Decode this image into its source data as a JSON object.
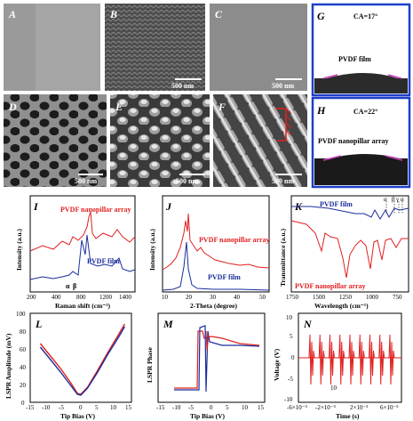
{
  "panels": {
    "A": "A",
    "B": "B",
    "C": "C",
    "D": "D",
    "E": "E",
    "F": "F",
    "G": "G",
    "H": "H",
    "I": "I",
    "J": "J",
    "K": "K",
    "L": "L",
    "M": "M",
    "N": "N"
  },
  "scalebars": {
    "B": "500 nm",
    "C": "500 nm",
    "D": "500 nm",
    "E": "500 nm",
    "F": "500 nm"
  },
  "contact_angle": {
    "G": {
      "ca": "CA=17°",
      "label": "PVDF film"
    },
    "H": {
      "ca": "CA=22°",
      "label": "PVDF nanopillar array"
    }
  },
  "colors": {
    "red": "#e02020",
    "blue": "#1a2d9c",
    "frame_blue": "#1f3fc8",
    "sem_dark": "#2a2a2a"
  },
  "chart_data": [
    {
      "panel": "I",
      "type": "line",
      "xlabel": "Raman shift (cm⁻¹)",
      "ylabel": "Intensity (a.u.)",
      "xticks": [
        "200",
        "400",
        "800",
        "1200",
        "1400"
      ],
      "series": [
        {
          "name": "PVDF nanopillar array",
          "color": "red"
        },
        {
          "name": "PVDF film",
          "color": "blue"
        }
      ],
      "annotations": [
        "α",
        "β"
      ]
    },
    {
      "panel": "J",
      "type": "line",
      "xlabel": "2-Theta (degree)",
      "ylabel": "Intensity (a.u.)",
      "xticks": [
        "10",
        "20",
        "30",
        "40",
        "50"
      ],
      "series": [
        {
          "name": "PVDF nanopillar array",
          "color": "red"
        },
        {
          "name": "PVDF film",
          "color": "blue"
        }
      ]
    },
    {
      "panel": "K",
      "type": "line",
      "xlabel": "Wavelength (cm⁻¹)",
      "ylabel": "Transmittance (a.u.)",
      "xticks": [
        "1750",
        "1500",
        "1250",
        "1000",
        "750"
      ],
      "series": [
        {
          "name": "PVDF film",
          "color": "blue"
        },
        {
          "name": "PVDF nanopillar array",
          "color": "red"
        }
      ],
      "annotations": [
        "α",
        "β",
        "γ",
        "α"
      ]
    },
    {
      "panel": "L",
      "type": "line",
      "xlabel": "Tip Bias (V)",
      "ylabel": "LSPR Amplitude (mV)",
      "xticks": [
        "-15",
        "-10",
        "-5",
        "0",
        "5",
        "10",
        "15"
      ],
      "yticks": [
        "0",
        "20",
        "40",
        "60",
        "80",
        "100"
      ],
      "xlim": [
        -15,
        15
      ],
      "ylim": [
        0,
        100
      ],
      "series": [
        {
          "color": "red",
          "x": [
            -12,
            -9,
            -6,
            -3,
            -1,
            0,
            2,
            5,
            8,
            11,
            13
          ],
          "y": [
            66,
            52,
            38,
            22,
            10,
            9,
            17,
            36,
            56,
            75,
            88
          ]
        },
        {
          "color": "blue",
          "x": [
            -12,
            -9,
            -6,
            -3,
            -1,
            0,
            2,
            5,
            8,
            11,
            13
          ],
          "y": [
            62,
            48,
            34,
            19,
            9,
            8,
            16,
            34,
            54,
            72,
            85
          ]
        }
      ]
    },
    {
      "panel": "M",
      "type": "line",
      "xlabel": "Tip Bias (V)",
      "ylabel": "LSPR Phase",
      "xticks": [
        "-15",
        "-10",
        "-5",
        "0",
        "5",
        "10",
        "15"
      ],
      "series": [
        {
          "color": "red"
        },
        {
          "color": "blue"
        }
      ]
    },
    {
      "panel": "N",
      "type": "line",
      "xlabel": "Time (s)",
      "ylabel": "Voltage (V)",
      "xticks": [
        "-6×10⁻⁵",
        "-2×10⁻⁵",
        "2×10⁻⁵",
        "6×10⁻⁵"
      ],
      "yticks": [
        "-10",
        "-5",
        "0",
        "5",
        "10"
      ],
      "ylim": [
        -10,
        10
      ],
      "annotation": "10",
      "series": [
        {
          "color": "red",
          "pulses": 9
        }
      ]
    }
  ]
}
